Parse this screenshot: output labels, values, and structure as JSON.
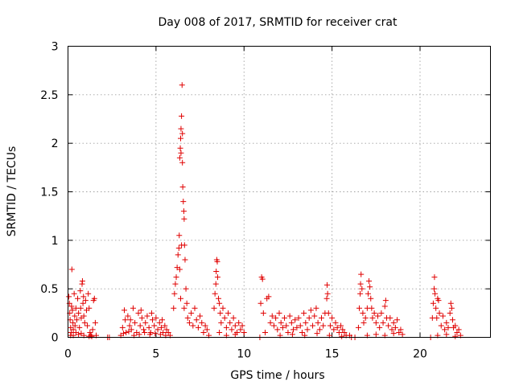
{
  "chart_data": {
    "type": "scatter",
    "title": "Day 008 of 2017, SRMTID for receiver crat",
    "xlabel": "GPS time / hours",
    "ylabel": "SRMTID / TECUs",
    "xlim": [
      0,
      24
    ],
    "ylim": [
      0,
      3
    ],
    "xticks": [
      "0",
      "5",
      "10",
      "15",
      "20"
    ],
    "yticks": [
      "0",
      "0.5",
      "1",
      "1.5",
      "2",
      "2.5",
      "3"
    ],
    "xtick_values": [
      0,
      5,
      10,
      15,
      20
    ],
    "ytick_values": [
      0,
      0.5,
      1,
      1.5,
      2,
      2.5,
      3
    ],
    "grid": true,
    "marker": "+",
    "color": "#e00000",
    "series": [
      {
        "name": "SRMTID",
        "points": [
          [
            0.05,
            0.42
          ],
          [
            0.08,
            0.35
          ],
          [
            0.1,
            0.25
          ],
          [
            0.12,
            0.18
          ],
          [
            0.15,
            0.1
          ],
          [
            0.18,
            0.05
          ],
          [
            0.2,
            0.32
          ],
          [
            0.22,
            0.7
          ],
          [
            0.25,
            0.28
          ],
          [
            0.28,
            0.15
          ],
          [
            0.3,
            0.08
          ],
          [
            0.35,
            0.45
          ],
          [
            0.38,
            0.22
          ],
          [
            0.4,
            0.12
          ],
          [
            0.45,
            0.3
          ],
          [
            0.5,
            0.18
          ],
          [
            0.55,
            0.4
          ],
          [
            0.6,
            0.25
          ],
          [
            0.65,
            0.1
          ],
          [
            0.7,
            0.48
          ],
          [
            0.72,
            0.3
          ],
          [
            0.75,
            0.2
          ],
          [
            0.8,
            0.55
          ],
          [
            0.82,
            0.58
          ],
          [
            0.85,
            0.35
          ],
          [
            0.88,
            0.42
          ],
          [
            0.9,
            0.22
          ],
          [
            0.95,
            0.15
          ],
          [
            1.0,
            0.38
          ],
          [
            1.05,
            0.28
          ],
          [
            1.1,
            0.12
          ],
          [
            1.15,
            0.45
          ],
          [
            1.2,
            0.3
          ],
          [
            1.25,
            0.05
          ],
          [
            1.3,
            0.02
          ],
          [
            1.35,
            0.01
          ],
          [
            1.4,
            0.08
          ],
          [
            1.45,
            0.38
          ],
          [
            1.5,
            0.4
          ],
          [
            1.55,
            0.15
          ],
          [
            1.6,
            0.02
          ],
          [
            0.3,
            0.02
          ],
          [
            0.6,
            0.03
          ],
          [
            0.9,
            0.02
          ],
          [
            1.2,
            0.01
          ],
          [
            0.15,
            0.02
          ],
          [
            0.45,
            0.05
          ],
          [
            0.75,
            0.04
          ],
          [
            2.25,
            0.0
          ],
          [
            2.35,
            0.0
          ],
          [
            3.0,
            0.02
          ],
          [
            3.1,
            0.1
          ],
          [
            3.2,
            0.28
          ],
          [
            3.25,
            0.18
          ],
          [
            3.3,
            0.05
          ],
          [
            3.4,
            0.22
          ],
          [
            3.5,
            0.12
          ],
          [
            3.6,
            0.08
          ],
          [
            3.7,
            0.3
          ],
          [
            3.8,
            0.15
          ],
          [
            3.9,
            0.05
          ],
          [
            4.0,
            0.25
          ],
          [
            4.1,
            0.12
          ],
          [
            4.2,
            0.2
          ],
          [
            4.3,
            0.08
          ],
          [
            4.4,
            0.15
          ],
          [
            4.5,
            0.22
          ],
          [
            4.6,
            0.1
          ],
          [
            4.7,
            0.05
          ],
          [
            4.8,
            0.18
          ],
          [
            4.9,
            0.12
          ],
          [
            5.0,
            0.2
          ],
          [
            5.1,
            0.08
          ],
          [
            5.2,
            0.15
          ],
          [
            5.3,
            0.1
          ],
          [
            5.4,
            0.05
          ],
          [
            5.5,
            0.12
          ],
          [
            5.6,
            0.08
          ],
          [
            5.7,
            0.05
          ],
          [
            5.8,
            0.02
          ],
          [
            3.15,
            0.04
          ],
          [
            3.45,
            0.06
          ],
          [
            3.75,
            0.02
          ],
          [
            4.05,
            0.03
          ],
          [
            4.35,
            0.05
          ],
          [
            4.65,
            0.03
          ],
          [
            4.95,
            0.04
          ],
          [
            5.25,
            0.03
          ],
          [
            5.55,
            0.02
          ],
          [
            3.55,
            0.18
          ],
          [
            4.15,
            0.28
          ],
          [
            4.75,
            0.25
          ],
          [
            5.35,
            0.18
          ],
          [
            6.0,
            0.3
          ],
          [
            6.05,
            0.45
          ],
          [
            6.1,
            0.55
          ],
          [
            6.15,
            0.62
          ],
          [
            6.2,
            0.72
          ],
          [
            6.25,
            0.85
          ],
          [
            6.3,
            0.92
          ],
          [
            6.32,
            1.05
          ],
          [
            6.35,
            1.85
          ],
          [
            6.38,
            1.95
          ],
          [
            6.4,
            2.05
          ],
          [
            6.42,
            2.15
          ],
          [
            6.45,
            2.28
          ],
          [
            6.48,
            2.6
          ],
          [
            6.5,
            1.8
          ],
          [
            6.52,
            1.55
          ],
          [
            6.55,
            1.4
          ],
          [
            6.58,
            1.3
          ],
          [
            6.6,
            1.22
          ],
          [
            6.62,
            0.95
          ],
          [
            6.65,
            0.8
          ],
          [
            6.7,
            0.5
          ],
          [
            6.75,
            0.35
          ],
          [
            6.8,
            0.2
          ],
          [
            6.9,
            0.15
          ],
          [
            7.0,
            0.25
          ],
          [
            7.1,
            0.12
          ],
          [
            7.2,
            0.3
          ],
          [
            7.3,
            0.18
          ],
          [
            7.4,
            0.1
          ],
          [
            7.5,
            0.22
          ],
          [
            7.6,
            0.15
          ],
          [
            7.7,
            0.05
          ],
          [
            7.8,
            0.12
          ],
          [
            7.9,
            0.08
          ],
          [
            8.0,
            0.02
          ],
          [
            6.4,
            0.4
          ],
          [
            6.6,
            0.3
          ],
          [
            6.45,
            0.95
          ],
          [
            6.35,
            0.7
          ],
          [
            6.5,
            2.1
          ],
          [
            6.42,
            1.9
          ],
          [
            8.3,
            0.3
          ],
          [
            8.35,
            0.45
          ],
          [
            8.4,
            0.55
          ],
          [
            8.42,
            0.68
          ],
          [
            8.45,
            0.8
          ],
          [
            8.48,
            0.78
          ],
          [
            8.5,
            0.62
          ],
          [
            8.55,
            0.4
          ],
          [
            8.6,
            0.35
          ],
          [
            8.65,
            0.25
          ],
          [
            8.7,
            0.15
          ],
          [
            8.8,
            0.3
          ],
          [
            8.9,
            0.2
          ],
          [
            9.0,
            0.1
          ],
          [
            9.1,
            0.25
          ],
          [
            9.2,
            0.15
          ],
          [
            9.3,
            0.08
          ],
          [
            9.4,
            0.2
          ],
          [
            9.5,
            0.12
          ],
          [
            9.6,
            0.05
          ],
          [
            9.7,
            0.15
          ],
          [
            9.8,
            0.08
          ],
          [
            9.9,
            0.12
          ],
          [
            10.0,
            0.05
          ],
          [
            8.6,
            0.05
          ],
          [
            9.0,
            0.02
          ],
          [
            9.5,
            0.03
          ],
          [
            10.9,
            0.0
          ],
          [
            10.95,
            0.35
          ],
          [
            11.0,
            0.62
          ],
          [
            11.05,
            0.6
          ],
          [
            11.1,
            0.25
          ],
          [
            11.2,
            0.05
          ],
          [
            11.3,
            0.4
          ],
          [
            11.4,
            0.42
          ],
          [
            11.5,
            0.15
          ],
          [
            11.6,
            0.22
          ],
          [
            11.7,
            0.12
          ],
          [
            11.8,
            0.2
          ],
          [
            11.9,
            0.08
          ],
          [
            12.0,
            0.25
          ],
          [
            12.1,
            0.15
          ],
          [
            12.2,
            0.1
          ],
          [
            12.3,
            0.2
          ],
          [
            12.4,
            0.12
          ],
          [
            12.5,
            0.05
          ],
          [
            12.6,
            0.22
          ],
          [
            12.7,
            0.15
          ],
          [
            12.8,
            0.08
          ],
          [
            12.9,
            0.18
          ],
          [
            13.0,
            0.1
          ],
          [
            13.1,
            0.2
          ],
          [
            13.2,
            0.12
          ],
          [
            13.3,
            0.05
          ],
          [
            13.4,
            0.25
          ],
          [
            13.5,
            0.15
          ],
          [
            13.6,
            0.08
          ],
          [
            13.7,
            0.2
          ],
          [
            13.8,
            0.28
          ],
          [
            13.9,
            0.12
          ],
          [
            14.0,
            0.22
          ],
          [
            14.1,
            0.3
          ],
          [
            14.2,
            0.15
          ],
          [
            14.3,
            0.08
          ],
          [
            14.4,
            0.2
          ],
          [
            14.5,
            0.12
          ],
          [
            14.6,
            0.25
          ],
          [
            14.7,
            0.4
          ],
          [
            14.72,
            0.54
          ],
          [
            14.75,
            0.45
          ],
          [
            14.8,
            0.25
          ],
          [
            14.9,
            0.12
          ],
          [
            15.0,
            0.2
          ],
          [
            15.1,
            0.08
          ],
          [
            15.2,
            0.15
          ],
          [
            15.3,
            0.1
          ],
          [
            15.4,
            0.05
          ],
          [
            15.5,
            0.12
          ],
          [
            15.6,
            0.08
          ],
          [
            15.7,
            0.05
          ],
          [
            15.8,
            0.02
          ],
          [
            12.05,
            0.02
          ],
          [
            12.75,
            0.03
          ],
          [
            13.45,
            0.02
          ],
          [
            14.15,
            0.04
          ],
          [
            14.85,
            0.02
          ],
          [
            15.55,
            0.01
          ],
          [
            16.0,
            0.02
          ],
          [
            16.1,
            0.0
          ],
          [
            16.3,
            0.0
          ],
          [
            16.5,
            0.1
          ],
          [
            16.55,
            0.3
          ],
          [
            16.6,
            0.45
          ],
          [
            16.62,
            0.55
          ],
          [
            16.65,
            0.65
          ],
          [
            16.7,
            0.5
          ],
          [
            16.75,
            0.25
          ],
          [
            16.8,
            0.15
          ],
          [
            16.9,
            0.2
          ],
          [
            17.0,
            0.3
          ],
          [
            17.05,
            0.45
          ],
          [
            17.1,
            0.58
          ],
          [
            17.15,
            0.52
          ],
          [
            17.2,
            0.4
          ],
          [
            17.25,
            0.3
          ],
          [
            17.3,
            0.2
          ],
          [
            17.4,
            0.25
          ],
          [
            17.5,
            0.15
          ],
          [
            17.6,
            0.22
          ],
          [
            17.7,
            0.1
          ],
          [
            17.8,
            0.25
          ],
          [
            17.9,
            0.15
          ],
          [
            18.0,
            0.32
          ],
          [
            18.05,
            0.38
          ],
          [
            18.1,
            0.2
          ],
          [
            18.2,
            0.12
          ],
          [
            18.3,
            0.2
          ],
          [
            18.4,
            0.08
          ],
          [
            18.5,
            0.15
          ],
          [
            18.6,
            0.1
          ],
          [
            18.7,
            0.18
          ],
          [
            18.8,
            0.05
          ],
          [
            18.9,
            0.08
          ],
          [
            19.0,
            0.03
          ],
          [
            17.0,
            0.02
          ],
          [
            17.5,
            0.03
          ],
          [
            18.0,
            0.02
          ],
          [
            18.5,
            0.04
          ],
          [
            20.6,
            0.0
          ],
          [
            20.7,
            0.2
          ],
          [
            20.75,
            0.35
          ],
          [
            20.8,
            0.5
          ],
          [
            20.82,
            0.62
          ],
          [
            20.85,
            0.45
          ],
          [
            20.9,
            0.3
          ],
          [
            20.95,
            0.2
          ],
          [
            21.0,
            0.4
          ],
          [
            21.05,
            0.38
          ],
          [
            21.1,
            0.25
          ],
          [
            21.2,
            0.12
          ],
          [
            21.3,
            0.22
          ],
          [
            21.4,
            0.08
          ],
          [
            21.5,
            0.15
          ],
          [
            21.6,
            0.1
          ],
          [
            21.7,
            0.25
          ],
          [
            21.75,
            0.35
          ],
          [
            21.8,
            0.3
          ],
          [
            21.85,
            0.18
          ],
          [
            21.9,
            0.1
          ],
          [
            22.0,
            0.12
          ],
          [
            22.1,
            0.05
          ],
          [
            22.2,
            0.08
          ],
          [
            22.3,
            0.02
          ],
          [
            21.0,
            0.02
          ],
          [
            21.5,
            0.03
          ],
          [
            22.0,
            0.01
          ]
        ]
      }
    ]
  }
}
